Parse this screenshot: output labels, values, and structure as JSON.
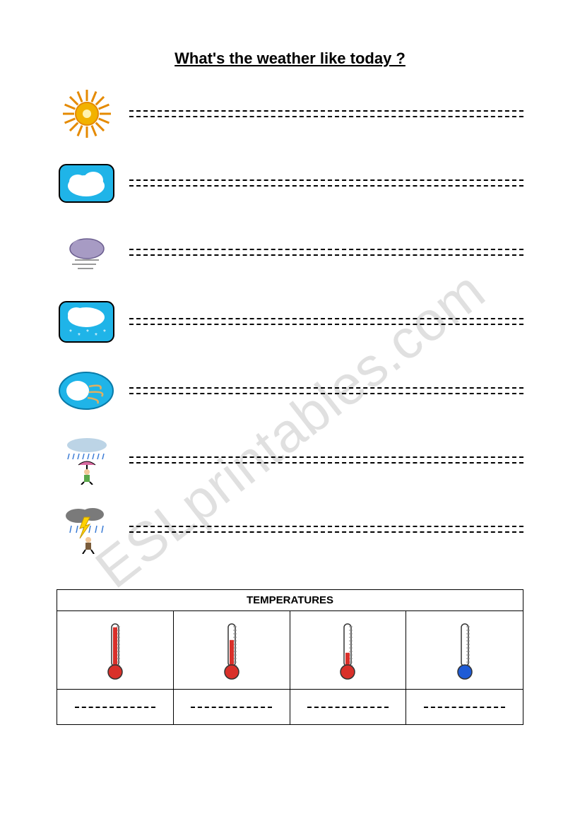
{
  "title": "What's the weather like today ?",
  "watermark": "ESLprintables.com",
  "weather_items": [
    {
      "name": "sunny",
      "icon": "sun"
    },
    {
      "name": "cloudy",
      "icon": "cloud"
    },
    {
      "name": "foggy",
      "icon": "fog"
    },
    {
      "name": "snowy",
      "icon": "snow"
    },
    {
      "name": "windy",
      "icon": "wind"
    },
    {
      "name": "rainy",
      "icon": "rain-person"
    },
    {
      "name": "stormy",
      "icon": "storm"
    }
  ],
  "temperatures": {
    "header": "TEMPERATURES",
    "items": [
      {
        "level": "hot",
        "fill": 0.92,
        "bulb": "#d9302a"
      },
      {
        "level": "warm",
        "fill": 0.62,
        "bulb": "#d9302a"
      },
      {
        "level": "cool",
        "fill": 0.32,
        "bulb": "#d9302a"
      },
      {
        "level": "cold",
        "fill": 0.0,
        "bulb": "#1e5bd6"
      }
    ]
  },
  "colors": {
    "sky": "#1fb4e8",
    "sun_body": "#f2b200",
    "sun_ray": "#e58a00",
    "cloud": "#ffffff",
    "cloud_shadow": "#d0d0e6",
    "fog_cloud": "#a79bc4",
    "storm_gray": "#7a7a7a",
    "lightning": "#ffd200",
    "thermo_outline": "#333333",
    "thermo_scale": "#888888"
  },
  "lines_per_row": 2
}
